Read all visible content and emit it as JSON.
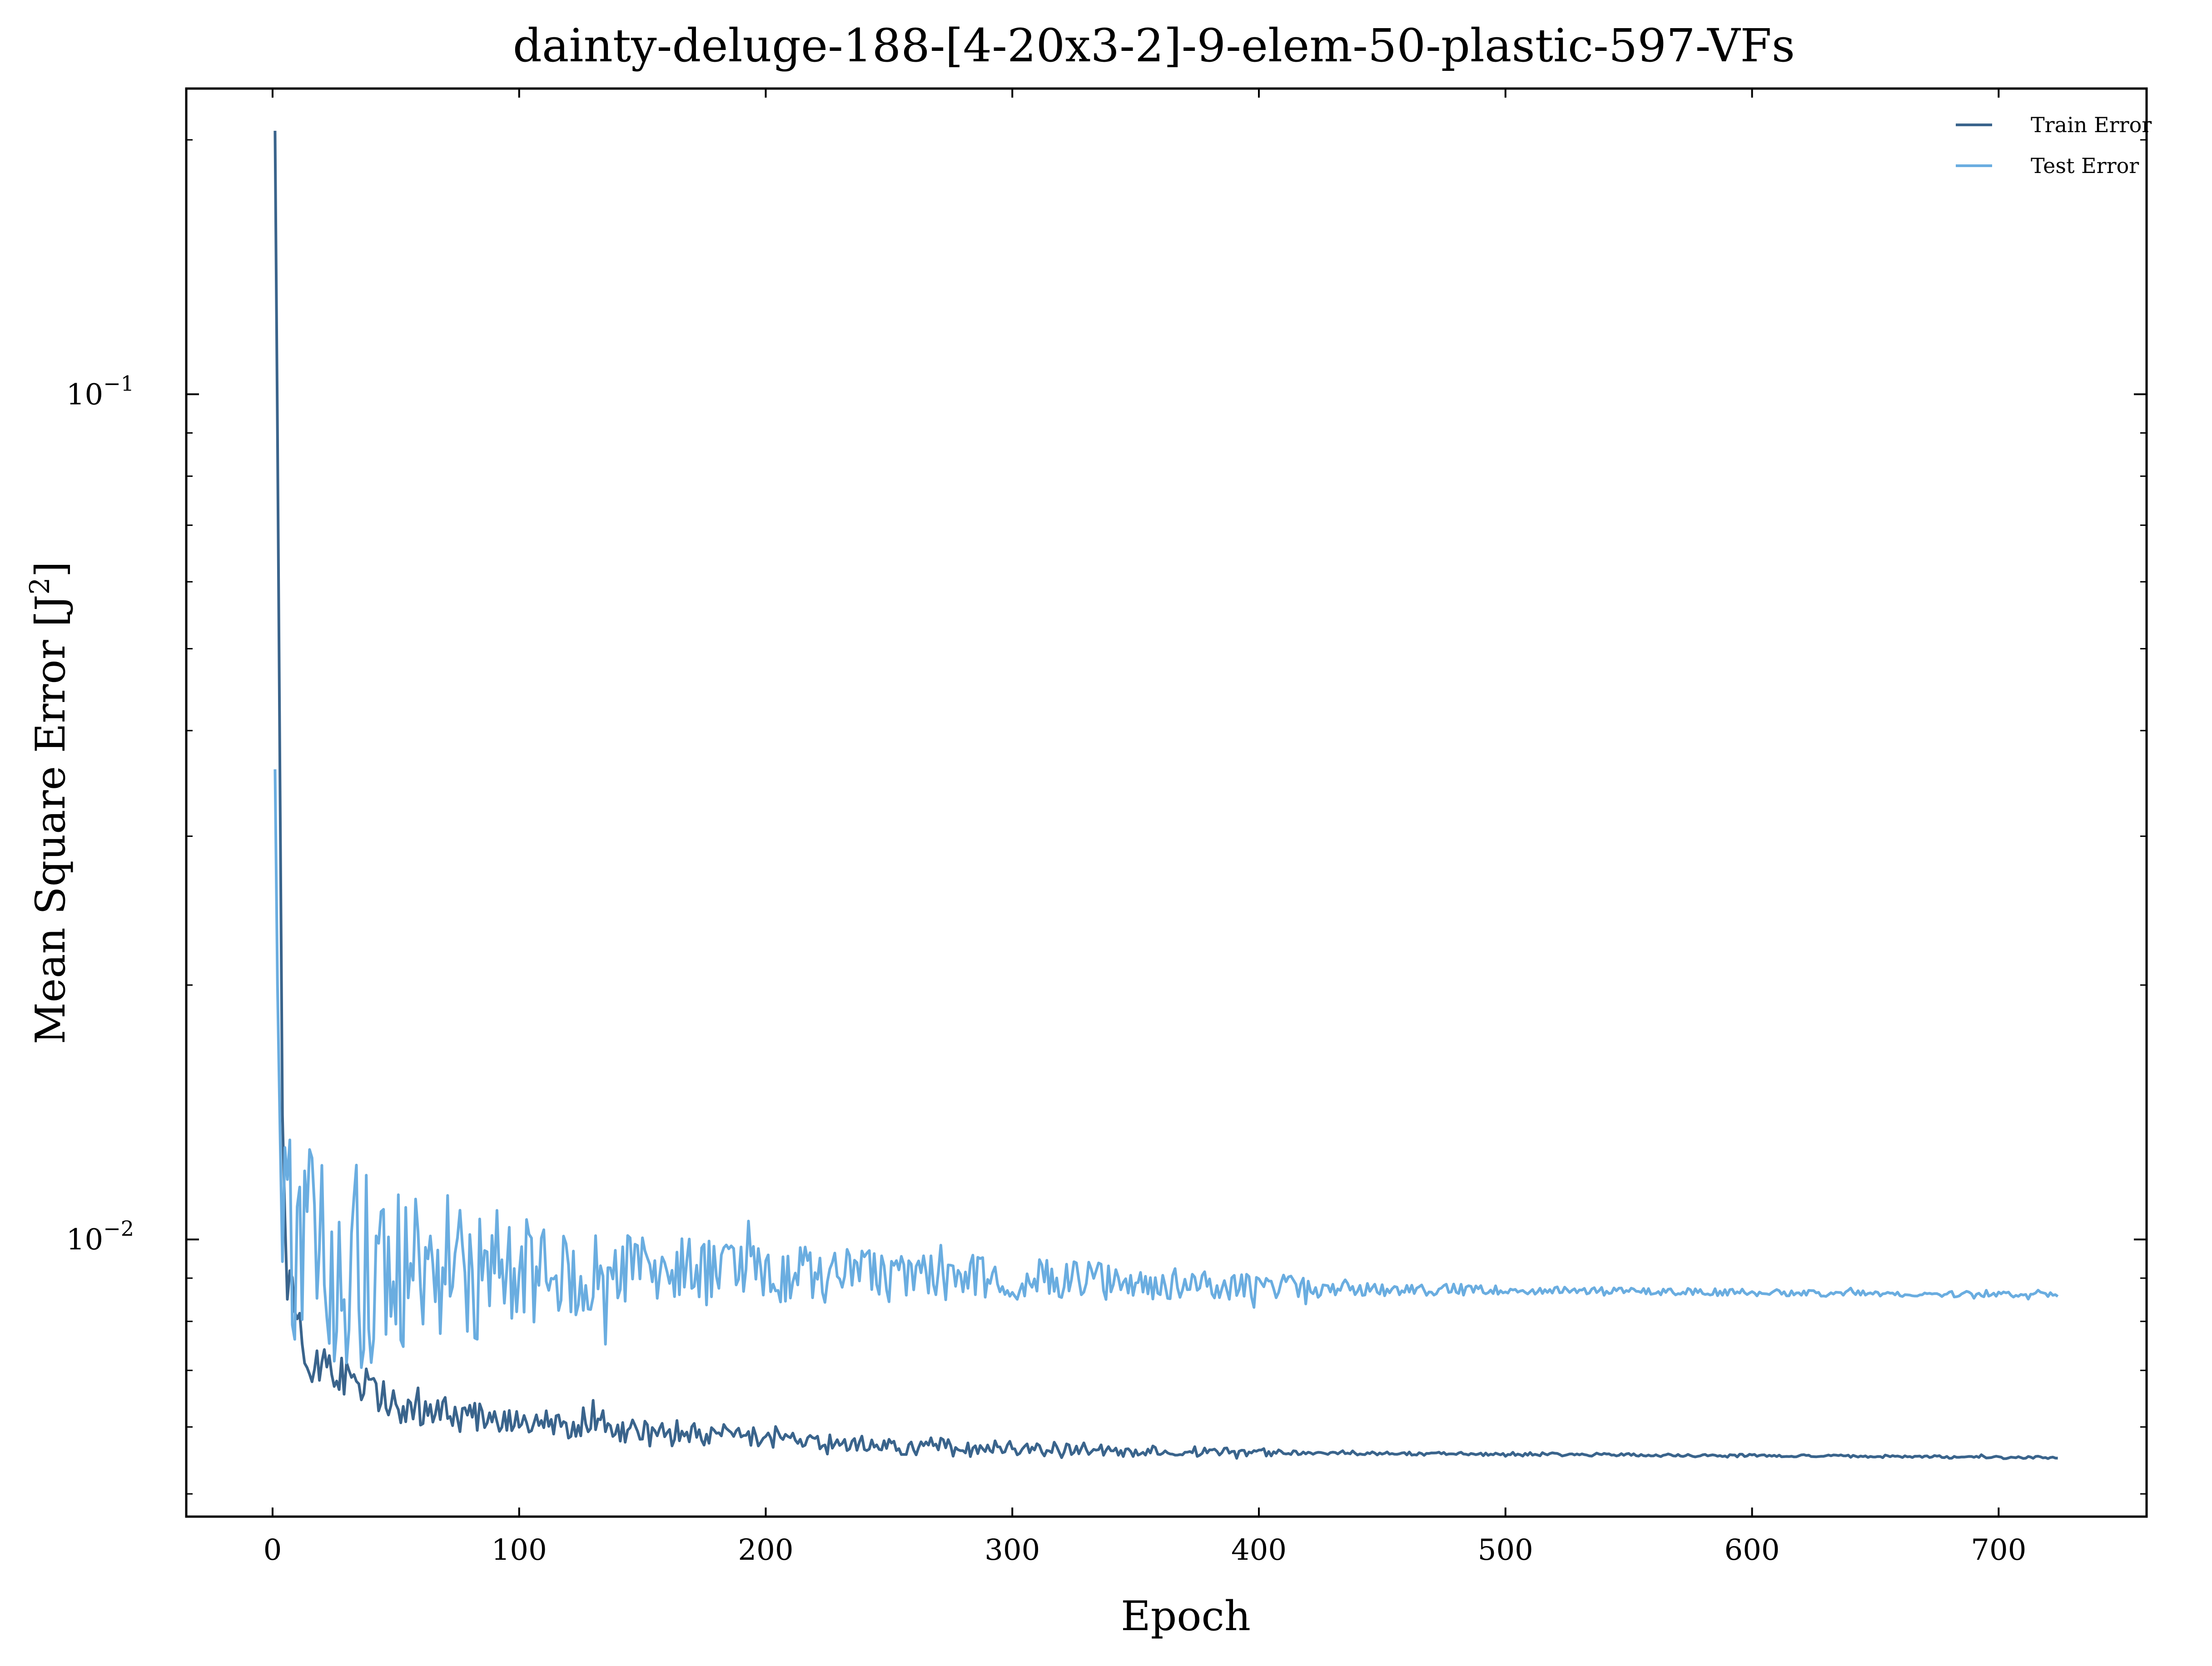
{
  "chart_data": {
    "type": "line",
    "title": "dainty-deluge-188-[4-20x3-2]-9-elem-50-plastic-597-VFs",
    "xlabel": "Epoch",
    "ylabel": "Mean Square Error [J²]",
    "ylabel_parts": {
      "main": "Mean Square Error [J",
      "sup": "2",
      "end": "]"
    },
    "xlim": [
      -35,
      760
    ],
    "ylim": [
      0.0047,
      0.23
    ],
    "yscale": "log",
    "xticks": [
      0,
      100,
      200,
      300,
      400,
      500,
      600,
      700
    ],
    "xtick_labels": [
      "0",
      "100",
      "200",
      "300",
      "400",
      "500",
      "600",
      "700"
    ],
    "yticks_major": [
      {
        "value": 0.1,
        "base": "10",
        "exp": "−1"
      },
      {
        "value": 0.01,
        "base": "10",
        "exp": "−2"
      }
    ],
    "grid": false,
    "legend_position": "top-right",
    "epochs": 724,
    "series": [
      {
        "name": "Train Error",
        "color": "#3a648c",
        "anchors": [
          [
            1,
            0.205
          ],
          [
            2,
            0.09
          ],
          [
            3,
            0.035
          ],
          [
            4,
            0.016
          ],
          [
            5,
            0.0105
          ],
          [
            6,
            0.0085
          ],
          [
            10,
            0.0082
          ],
          [
            15,
            0.0072
          ],
          [
            20,
            0.0072
          ],
          [
            30,
            0.0068
          ],
          [
            50,
            0.0064
          ],
          [
            75,
            0.0062
          ],
          [
            100,
            0.0061
          ],
          [
            150,
            0.0059
          ],
          [
            200,
            0.0058
          ],
          [
            250,
            0.0057
          ],
          [
            300,
            0.00565
          ],
          [
            400,
            0.0056
          ],
          [
            500,
            0.00557
          ],
          [
            600,
            0.00555
          ],
          [
            724,
            0.00552
          ]
        ],
        "noise_amplitude": [
          [
            0,
            0.1
          ],
          [
            50,
            0.08
          ],
          [
            100,
            0.05
          ],
          [
            200,
            0.035
          ],
          [
            300,
            0.025
          ],
          [
            400,
            0.012
          ],
          [
            450,
            0.006
          ],
          [
            724,
            0.004
          ]
        ]
      },
      {
        "name": "Test Error",
        "color": "#6aade0",
        "anchors": [
          [
            1,
            0.036
          ],
          [
            2,
            0.02
          ],
          [
            3,
            0.0135
          ],
          [
            5,
            0.011
          ],
          [
            10,
            0.0095
          ],
          [
            20,
            0.0095
          ],
          [
            50,
            0.0092
          ],
          [
            100,
            0.0092
          ],
          [
            150,
            0.0092
          ],
          [
            200,
            0.0091
          ],
          [
            300,
            0.009
          ],
          [
            400,
            0.0088
          ],
          [
            500,
            0.0087
          ],
          [
            600,
            0.00865
          ],
          [
            724,
            0.0086
          ]
        ],
        "noise_amplitude": [
          [
            0,
            0.32
          ],
          [
            50,
            0.25
          ],
          [
            100,
            0.15
          ],
          [
            150,
            0.1
          ],
          [
            200,
            0.08
          ],
          [
            300,
            0.06
          ],
          [
            400,
            0.035
          ],
          [
            450,
            0.02
          ],
          [
            500,
            0.012
          ],
          [
            724,
            0.007
          ]
        ]
      }
    ]
  }
}
